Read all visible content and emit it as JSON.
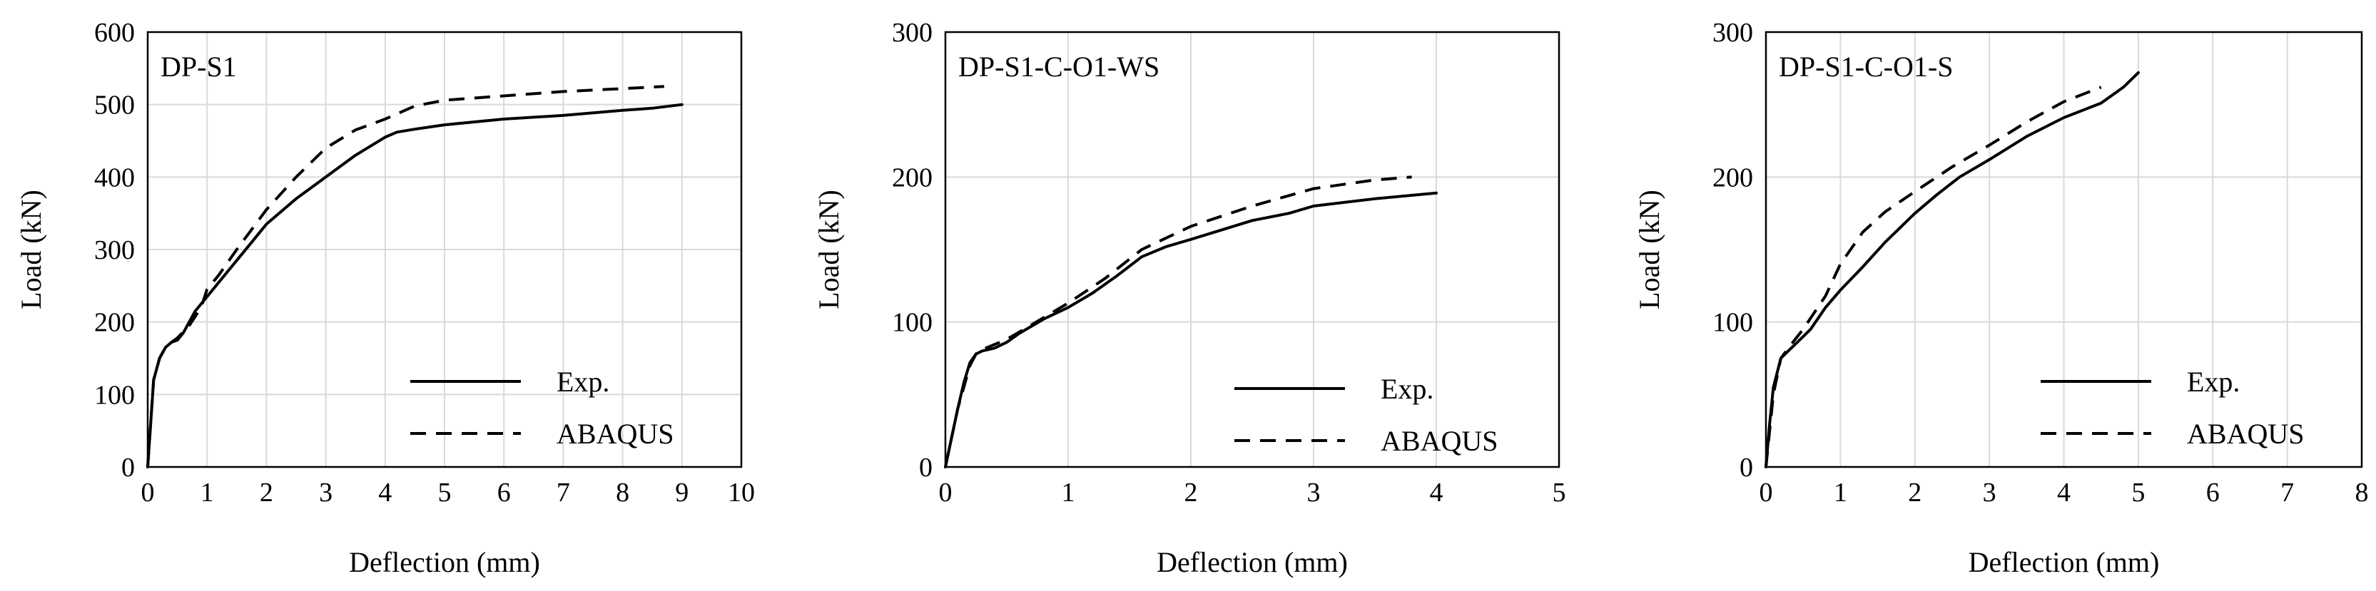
{
  "chart_data": [
    {
      "type": "line",
      "title": "DP-S1",
      "xlabel": "Deflection (mm)",
      "ylabel": "Load (kN)",
      "xlim": [
        0,
        10
      ],
      "ylim": [
        0,
        600
      ],
      "xticks": [
        0,
        1,
        2,
        3,
        4,
        5,
        6,
        7,
        8,
        9,
        10
      ],
      "yticks": [
        0,
        100,
        200,
        300,
        400,
        500,
        600
      ],
      "grid": true,
      "legend": "bottom-right",
      "series": [
        {
          "name": "Exp.",
          "style": "solid",
          "x": [
            0,
            0.05,
            0.1,
            0.2,
            0.3,
            0.4,
            0.5,
            0.6,
            0.7,
            0.8,
            1.0,
            1.2,
            1.5,
            1.8,
            2.0,
            2.5,
            3.0,
            3.5,
            3.8,
            4.0,
            4.2,
            4.5,
            5.0,
            6.0,
            7.0,
            8.0,
            8.5,
            9.0
          ],
          "y": [
            0,
            60,
            120,
            150,
            165,
            172,
            175,
            185,
            200,
            215,
            235,
            255,
            285,
            315,
            335,
            370,
            400,
            430,
            445,
            455,
            462,
            466,
            472,
            480,
            485,
            492,
            495,
            500
          ]
        },
        {
          "name": "ABAQUS",
          "style": "dashed",
          "x": [
            0,
            0.1,
            0.2,
            0.3,
            0.4,
            0.5,
            0.7,
            0.9,
            1.0,
            1.2,
            1.5,
            2.0,
            2.5,
            3.0,
            3.5,
            4.0,
            4.5,
            5.0,
            6.0,
            7.0,
            8.0,
            8.7
          ],
          "y": [
            0,
            120,
            150,
            165,
            172,
            178,
            195,
            220,
            245,
            265,
            300,
            355,
            400,
            440,
            465,
            480,
            498,
            506,
            512,
            518,
            522,
            525
          ]
        }
      ]
    },
    {
      "type": "line",
      "title": "DP-S1-C-O1-WS",
      "xlabel": "Deflection (mm)",
      "ylabel": "Load (kN)",
      "xlim": [
        0,
        5
      ],
      "ylim": [
        0,
        300
      ],
      "xticks": [
        0,
        1,
        2,
        3,
        4,
        5
      ],
      "yticks": [
        0,
        100,
        200,
        300
      ],
      "grid": true,
      "legend": "bottom-right",
      "series": [
        {
          "name": "Exp.",
          "style": "solid",
          "x": [
            0,
            0.05,
            0.1,
            0.15,
            0.2,
            0.25,
            0.3,
            0.4,
            0.5,
            0.6,
            0.8,
            1.0,
            1.2,
            1.4,
            1.6,
            1.8,
            2.0,
            2.5,
            2.8,
            3.0,
            3.5,
            4.0
          ],
          "y": [
            0,
            20,
            40,
            58,
            72,
            78,
            80,
            82,
            86,
            92,
            102,
            110,
            120,
            132,
            145,
            152,
            157,
            170,
            175,
            180,
            185,
            189
          ]
        },
        {
          "name": "ABAQUS",
          "style": "dashed",
          "x": [
            0,
            0.1,
            0.2,
            0.25,
            0.3,
            0.5,
            0.8,
            1.0,
            1.3,
            1.6,
            2.0,
            2.5,
            3.0,
            3.5,
            3.8
          ],
          "y": [
            0,
            40,
            70,
            78,
            81,
            88,
            103,
            113,
            130,
            150,
            166,
            180,
            192,
            198,
            200
          ]
        }
      ]
    },
    {
      "type": "line",
      "title": "DP-S1-C-O1-S",
      "xlabel": "Deflection (mm)",
      "ylabel": "Load (kN)",
      "xlim": [
        0,
        8
      ],
      "ylim": [
        0,
        300
      ],
      "xticks": [
        0,
        1,
        2,
        3,
        4,
        5,
        6,
        7,
        8
      ],
      "yticks": [
        0,
        100,
        200,
        300
      ],
      "grid": true,
      "legend": "bottom-right",
      "series": [
        {
          "name": "Exp.",
          "style": "solid",
          "x": [
            0,
            0.05,
            0.1,
            0.2,
            0.3,
            0.4,
            0.6,
            0.8,
            1.0,
            1.3,
            1.6,
            2.0,
            2.3,
            2.6,
            3.0,
            3.5,
            4.0,
            4.5,
            4.8,
            5.0
          ],
          "y": [
            0,
            30,
            55,
            75,
            80,
            85,
            95,
            110,
            122,
            138,
            155,
            175,
            188,
            200,
            212,
            228,
            241,
            251,
            262,
            272
          ]
        },
        {
          "name": "ABAQUS",
          "style": "dashed",
          "x": [
            0,
            0.1,
            0.2,
            0.3,
            0.5,
            0.8,
            1.0,
            1.3,
            1.6,
            2.0,
            2.5,
            3.0,
            3.5,
            4.0,
            4.5
          ],
          "y": [
            0,
            50,
            75,
            82,
            95,
            118,
            140,
            162,
            176,
            190,
            207,
            222,
            238,
            252,
            262
          ]
        }
      ]
    }
  ]
}
